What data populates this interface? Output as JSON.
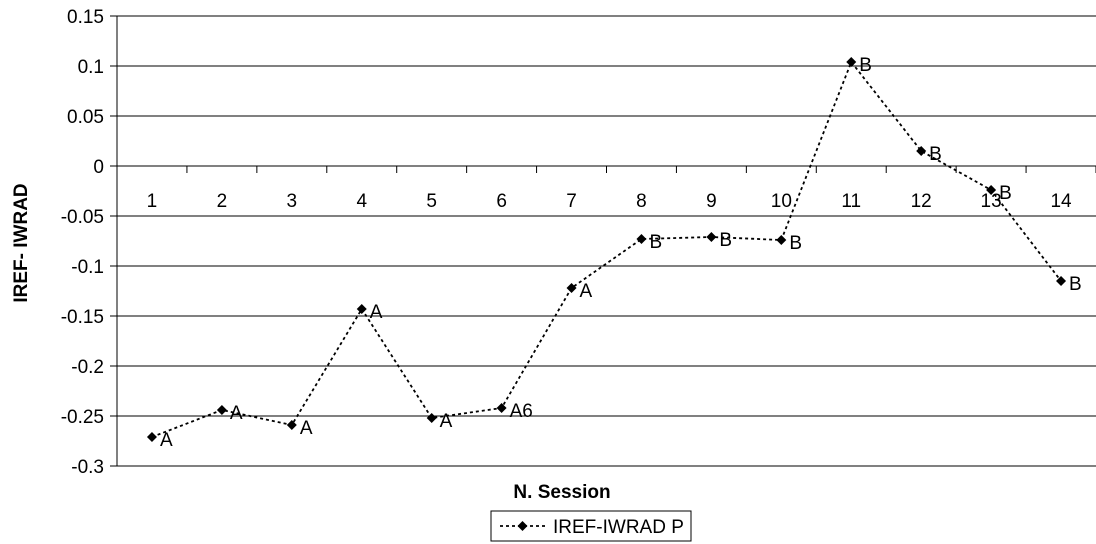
{
  "chart_data": {
    "type": "line",
    "title": "",
    "xlabel": "N.  Session",
    "ylabel": "IREF- IWRAD",
    "ylim": [
      -0.3,
      0.15
    ],
    "y_ticks": [
      "0.15",
      "0.1",
      "0.05",
      "0",
      "-0.05",
      "-0.1",
      "-0.15",
      "-0.2",
      "-0.25",
      "-0.3"
    ],
    "categories": [
      "1",
      "2",
      "3",
      "4",
      "5",
      "6",
      "7",
      "8",
      "9",
      "10",
      "11",
      "12",
      "13",
      "14"
    ],
    "grid": "horizontal",
    "legend_position": "bottom",
    "series": [
      {
        "name": "IREF-IWRAD P",
        "color": "#000000",
        "line_style": "dotted",
        "marker": "diamond",
        "values": [
          -0.271,
          -0.244,
          -0.259,
          -0.143,
          -0.252,
          -0.242,
          -0.122,
          -0.073,
          -0.071,
          -0.074,
          0.104,
          0.015,
          -0.024,
          -0.115
        ],
        "point_labels": [
          "A",
          "A",
          "A",
          "A",
          "A",
          "A6",
          "A",
          "B",
          "B",
          "B",
          "B",
          "B",
          "B",
          "B"
        ]
      }
    ]
  }
}
